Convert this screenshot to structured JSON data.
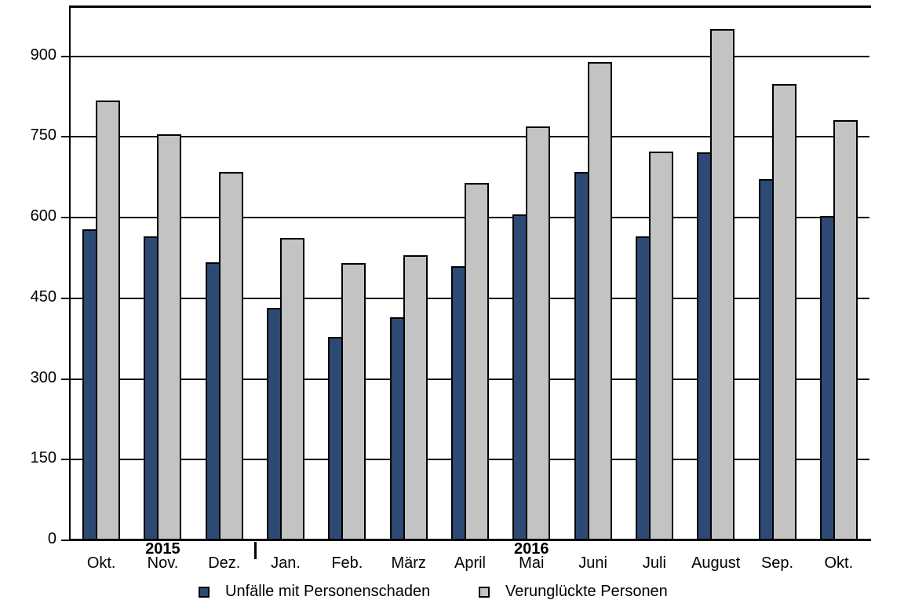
{
  "chart_data": {
    "type": "bar",
    "title": "",
    "xlabel": "",
    "ylabel": "",
    "categories": [
      "Okt.",
      "Nov.",
      "Dez.",
      "Jan.",
      "Feb.",
      "März",
      "April",
      "Mai",
      "Juni",
      "Juli",
      "August",
      "Sep.",
      "Okt."
    ],
    "series": [
      {
        "name": "Unfälle mit Personenschaden",
        "color": "#2d4a74",
        "values": [
          578,
          565,
          517,
          432,
          378,
          415,
          510,
          606,
          685,
          565,
          721,
          672,
          603
        ]
      },
      {
        "name": "Verunglückte Personen",
        "color": "#c3c3c3",
        "values": [
          818,
          755,
          685,
          562,
          515,
          530,
          665,
          770,
          889,
          723,
          951,
          848,
          781
        ]
      }
    ],
    "y_ticks": [
      0,
      150,
      300,
      450,
      600,
      750,
      900
    ],
    "ylim": [
      0,
      993
    ],
    "grid": "horizontal",
    "legend_position": "bottom",
    "year_labels": [
      {
        "label": "2015",
        "month_index": 1
      },
      {
        "label": "2016",
        "month_index": 7
      }
    ],
    "year_separator_after_month_index": 2
  },
  "colors": {
    "axis": "#000000",
    "bar_border": "#000000",
    "background": "#ffffff"
  }
}
